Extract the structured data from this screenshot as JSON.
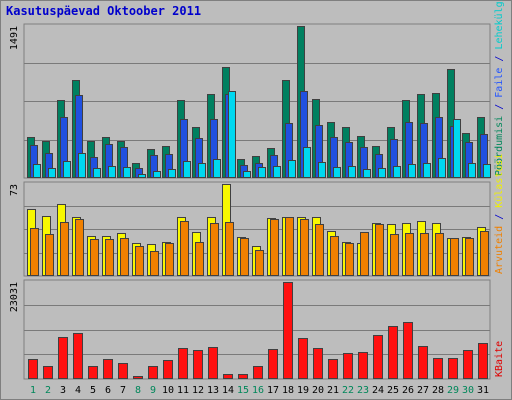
{
  "title": "Kasutuspäevad Oktoober 2011",
  "colors": {
    "background": "#bdbdbd",
    "title": "#0000cc",
    "weekday_label": "#000000",
    "weekend_label": "#00875a",
    "grid": "#7a7a7a"
  },
  "chart_data": [
    {
      "type": "bar",
      "ymax_label": "1491",
      "categories": [
        "1",
        "2",
        "3",
        "4",
        "5",
        "6",
        "7",
        "8",
        "9",
        "10",
        "11",
        "12",
        "13",
        "14",
        "15",
        "16",
        "17",
        "18",
        "19",
        "20",
        "21",
        "22",
        "23",
        "24",
        "25",
        "26",
        "27",
        "28",
        "29",
        "30",
        "31"
      ],
      "weekend": [
        1,
        2,
        8,
        9,
        15,
        16,
        22,
        23,
        29,
        30
      ],
      "right_labels": [
        {
          "text": "Pöördumisi",
          "color": "#00875a"
        },
        {
          "text": " / ",
          "color": "#0000cc"
        },
        {
          "text": "Faile",
          "color": "#2255ff"
        },
        {
          "text": " / ",
          "color": "#0000cc"
        },
        {
          "text": "Lehekülgi",
          "color": "#00cccc"
        }
      ],
      "series": [
        {
          "name": "Pöördumisi",
          "color": "#008060",
          "values": [
            405,
            365,
            765,
            965,
            365,
            405,
            365,
            150,
            280,
            310,
            765,
            500,
            820,
            1090,
            190,
            220,
            290,
            960,
            1491,
            775,
            550,
            500,
            410,
            310,
            500,
            770,
            820,
            835,
            1070,
            445,
            595
          ]
        },
        {
          "name": "Faile",
          "color": "#2050e0",
          "values": [
            320,
            250,
            600,
            810,
            210,
            330,
            300,
            100,
            230,
            240,
            580,
            390,
            580,
            820,
            130,
            150,
            230,
            540,
            850,
            520,
            400,
            350,
            300,
            240,
            380,
            550,
            540,
            600,
            510,
            350,
            430
          ]
        },
        {
          "name": "Lehekülgi",
          "color": "#00d8f0",
          "values": [
            140,
            100,
            170,
            250,
            100,
            120,
            110,
            40,
            70,
            90,
            170,
            150,
            190,
            850,
            70,
            110,
            120,
            180,
            300,
            160,
            110,
            120,
            90,
            100,
            120,
            140,
            150,
            200,
            580,
            150,
            140
          ]
        }
      ]
    },
    {
      "type": "bar",
      "ymax_label": "73",
      "categories": [
        "1",
        "2",
        "3",
        "4",
        "5",
        "6",
        "7",
        "8",
        "9",
        "10",
        "11",
        "12",
        "13",
        "14",
        "15",
        "16",
        "17",
        "18",
        "19",
        "20",
        "21",
        "22",
        "23",
        "24",
        "25",
        "26",
        "27",
        "28",
        "29",
        "30",
        "31"
      ],
      "right_labels": [
        {
          "text": "Arvuteid",
          "color": "#f08000"
        },
        {
          "text": " / ",
          "color": "#0000cc"
        },
        {
          "text": "Külastusi",
          "color": "#f0f000"
        }
      ],
      "series": [
        {
          "name": "Külastusi",
          "color": "#f8f800",
          "values": [
            53,
            48,
            57,
            47,
            32,
            32,
            34,
            26,
            25,
            27,
            47,
            35,
            47,
            73,
            31,
            24,
            46,
            47,
            47,
            47,
            36,
            27,
            26,
            42,
            41,
            42,
            44,
            42,
            30,
            31,
            39
          ]
        },
        {
          "name": "Arvuteid",
          "color": "#f08000",
          "values": [
            38,
            33,
            43,
            45,
            29,
            29,
            30,
            24,
            20,
            26,
            44,
            27,
            42,
            43,
            30,
            21,
            45,
            47,
            45,
            41,
            32,
            26,
            35,
            41,
            33,
            34,
            34,
            34,
            30,
            30,
            36
          ]
        }
      ]
    },
    {
      "type": "bar",
      "ymax_label": "23031",
      "categories": [
        "1",
        "2",
        "3",
        "4",
        "5",
        "6",
        "7",
        "8",
        "9",
        "10",
        "11",
        "12",
        "13",
        "14",
        "15",
        "16",
        "17",
        "18",
        "19",
        "20",
        "21",
        "22",
        "23",
        "24",
        "25",
        "26",
        "27",
        "28",
        "29",
        "30",
        "31"
      ],
      "right_labels": [
        {
          "text": "KBaite",
          "color": "#e00000"
        }
      ],
      "series": [
        {
          "name": "KBaite",
          "color": "#ff1010",
          "values": [
            4800,
            3200,
            10000,
            11000,
            3000,
            4700,
            3800,
            800,
            3000,
            4600,
            7400,
            7000,
            7700,
            1100,
            1100,
            3000,
            7200,
            23031,
            9800,
            7300,
            4700,
            6100,
            6500,
            10500,
            12600,
            13500,
            7900,
            5100,
            4900,
            6800,
            8500
          ]
        }
      ]
    }
  ]
}
